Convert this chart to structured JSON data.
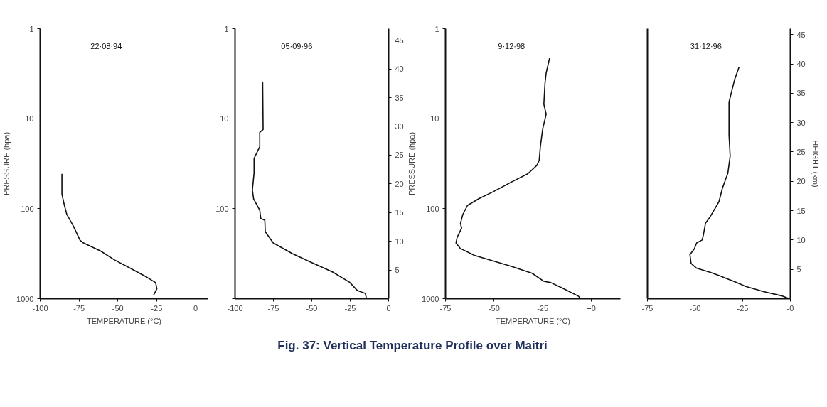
{
  "chart_data": [
    {
      "type": "line",
      "xlabel": "TEMPERATURE (°C)",
      "ylabel": "PRESSURE (hpa)",
      "log": "y",
      "grid": false,
      "line_style": "solid",
      "xlim": [
        -100,
        8
      ],
      "ylim": [
        1000,
        1
      ],
      "xticks": [
        -100,
        -75,
        -50,
        -25,
        0
      ],
      "yticks": [
        1,
        10,
        100,
        1000
      ],
      "annotations": [
        "22·08·94",
        "Fig. 37: Vertical Temperature Profile over Maitri"
      ],
      "series": [
        {
          "color": "#111111",
          "x": [
            -86,
            -86,
            -84.4,
            -82.9,
            -78.8,
            -74.3,
            -72.1,
            -61,
            -52,
            -41.9,
            -31.5,
            -25.7,
            -24.9,
            -27.1
          ],
          "values": [
            41,
            69,
            92,
            115,
            154,
            225,
            240,
            296,
            372,
            460,
            575,
            663,
            776,
            920
          ]
        }
      ]
    },
    {
      "type": "line",
      "log": "y",
      "grid": false,
      "line_style": "solid",
      "xlim": [
        -100,
        0
      ],
      "ylim": [
        1000,
        1
      ],
      "xticks": [
        -100,
        -75,
        -50,
        -25,
        0
      ],
      "yticks": [
        1,
        10,
        100,
        {
          "value": 1000,
          "label": null
        }
      ],
      "y2lim": [
        0,
        47
      ],
      "y2ticks": [
        5,
        10,
        15,
        20,
        25,
        30,
        35,
        40,
        45
      ],
      "annotations": [
        "05·09·96"
      ],
      "series": [
        {
          "color": "#111111",
          "x": [
            -82,
            -81.7,
            -83.9,
            -83.9,
            -87.6,
            -87.6,
            -88.7,
            -87.9,
            -83.9,
            -83.2,
            -80.6,
            -80.3,
            -75.1,
            -62.7,
            -51,
            -36.4,
            -25.4,
            -20.3,
            -15.2,
            -14.5
          ],
          "values": [
            3.9,
            13.2,
            14.2,
            20.5,
            27.6,
            40,
            62,
            78,
            104,
            129,
            134,
            180,
            240,
            315,
            390,
            506,
            657,
            813,
            873,
            980
          ]
        }
      ]
    },
    {
      "type": "line",
      "xlabel": "TEMPERATURE (°C)",
      "ylabel": "PRESSURE (hpa)",
      "log": "y",
      "grid": false,
      "line_style": "solid",
      "xlim": [
        -75,
        15
      ],
      "ylim": [
        1000,
        1
      ],
      "xticks": [
        -75,
        -50,
        -25,
        {
          "value": 0,
          "label": "+0"
        }
      ],
      "yticks": [
        1,
        10,
        100,
        1000
      ],
      "annotations": [
        "9·12·98"
      ],
      "series": [
        {
          "color": "#111111",
          "x": [
            -21.4,
            -23.2,
            -23.8,
            -24.4,
            -23.2,
            -25,
            -26.2,
            -26.8,
            -28,
            -32.7,
            -39.9,
            -50.6,
            -57.7,
            -63.7,
            -66.1,
            -67.3,
            -66.7,
            -69,
            -69.6,
            -67.3,
            -60.1,
            -50.6,
            -41.1,
            -30.4,
            -24.4,
            -20.8,
            -14.9,
            -6.5,
            -6
          ],
          "values": [
            2.1,
            3.1,
            4,
            6.9,
            8.9,
            13,
            20.5,
            29,
            33,
            41,
            49,
            65,
            77,
            92,
            116,
            146,
            164,
            208,
            240,
            277,
            330,
            380,
            437,
            522,
            641,
            663,
            762,
            941,
            975
          ]
        }
      ]
    },
    {
      "type": "line",
      "y2label": "HEIGHT (km)",
      "grid": false,
      "line_style": "solid",
      "xlim": [
        -75,
        0
      ],
      "xticks": [
        -75,
        -50,
        -25,
        {
          "value": 0,
          "label": "-0"
        }
      ],
      "y2lim": [
        0,
        46
      ],
      "y2ticks": [
        5,
        10,
        15,
        20,
        25,
        30,
        35,
        40,
        45
      ],
      "annotations": [
        "31·12·96"
      ],
      "series": [
        {
          "color": "#111111",
          "axis": "y2",
          "x": [
            -26.9,
            -29.3,
            -32.2,
            -32.2,
            -31.6,
            -32.8,
            -35.7,
            -37.5,
            -42.2,
            -44.5,
            -45.7,
            -46.3,
            -49.2,
            -50.4,
            -51.6,
            -52.7,
            -52.1,
            -49.2,
            -42.2,
            -36.3,
            -29.3,
            -23.4,
            -14.1,
            -4.7,
            -0.6
          ],
          "values": [
            39.5,
            37.3,
            33.5,
            27.9,
            24.3,
            21.4,
            18.8,
            16.5,
            13.9,
            12.9,
            10.8,
            10,
            9.5,
            8.5,
            8,
            7.5,
            6,
            5.2,
            4.5,
            3.8,
            2.9,
            2.1,
            1.2,
            0.5,
            0
          ]
        }
      ]
    }
  ]
}
